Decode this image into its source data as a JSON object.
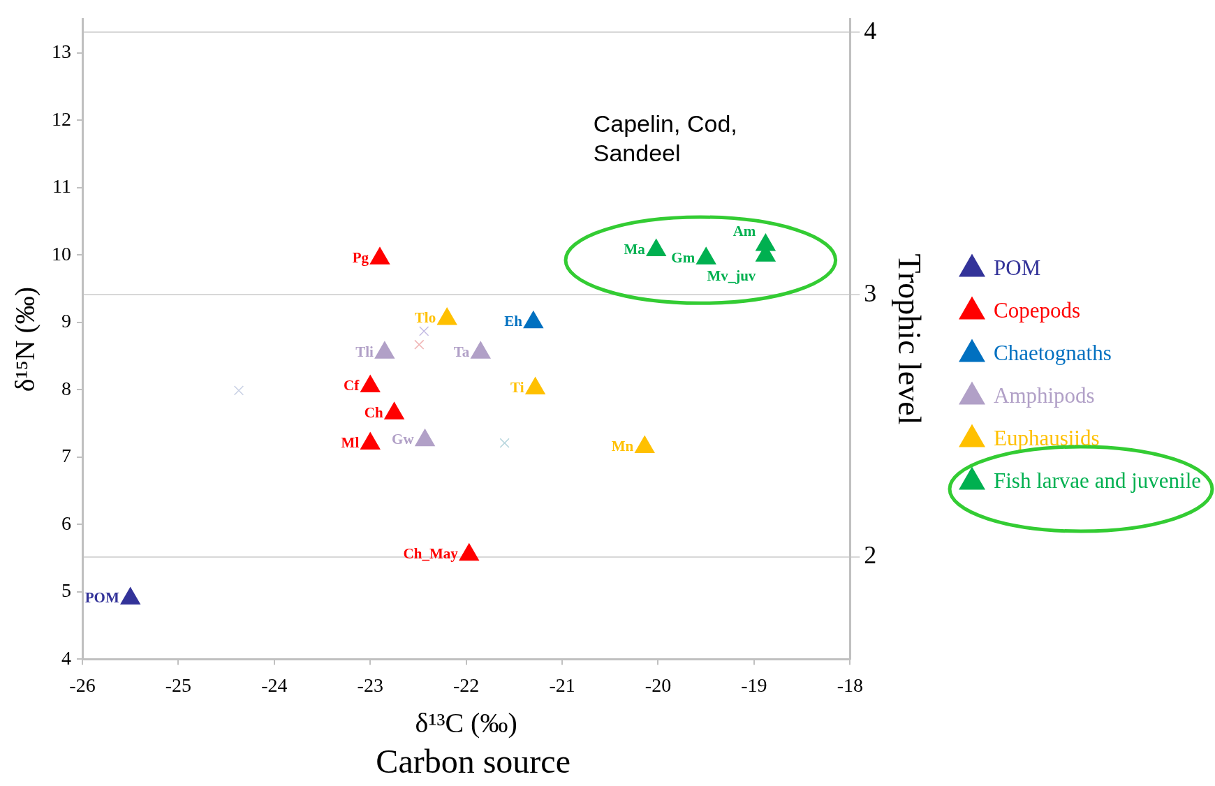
{
  "chart_data": {
    "type": "scatter",
    "xlabel": "δ¹³C (‰)",
    "ylabel": "δ¹⁵N (‰)",
    "y2label": "Trophic level",
    "xlim": [
      -26,
      -18
    ],
    "xticks": [
      -26,
      -25,
      -24,
      -23,
      -22,
      -21,
      -20,
      -19,
      -18
    ],
    "ylim": [
      4,
      13.5
    ],
    "yticks": [
      4,
      5,
      6,
      7,
      8,
      9,
      10,
      11,
      12,
      13
    ],
    "y2lim": [
      1.61,
      4.05
    ],
    "y2ticks": [
      2,
      3,
      4
    ],
    "grid": "y2",
    "legend": "right",
    "marker": "triangle",
    "annotations": [
      "Capelin, Cod, Sandeel",
      "Carbon source"
    ],
    "series": [
      {
        "name": "POM",
        "color": "#333399",
        "x": [
          -25.5
        ],
        "values": [
          4.9
        ],
        "value_labels": [
          "POM"
        ]
      },
      {
        "name": "Copepods",
        "color": "#ff0000",
        "x": [
          -22.9,
          -23.0,
          -22.75,
          -23.0,
          -21.97
        ],
        "values": [
          9.95,
          8.05,
          7.65,
          7.2,
          5.55
        ],
        "value_labels": [
          "Pg",
          "Cf",
          "Ch",
          "Ml",
          "Ch_May"
        ]
      },
      {
        "name": "Chaetognaths",
        "color": "#0070c0",
        "x": [
          -21.3
        ],
        "values": [
          9.0
        ],
        "value_labels": [
          "Eh"
        ]
      },
      {
        "name": "Amphipods",
        "color": "#b1a0c7",
        "x": [
          -22.85,
          -21.85,
          -22.43
        ],
        "values": [
          8.55,
          8.55,
          7.25
        ],
        "value_labels": [
          "Tli",
          "Ta",
          "Gw"
        ]
      },
      {
        "name": "Euphausiids",
        "color": "#ffc000",
        "x": [
          -22.2,
          -21.28,
          -20.14
        ],
        "values": [
          9.05,
          8.02,
          7.15
        ],
        "value_labels": [
          "Tlo",
          "Ti",
          "Mn"
        ]
      },
      {
        "name": "Fish larvae and juvenile",
        "color": "#00b050",
        "x": [
          -20.02,
          -19.5,
          -18.88,
          -18.88
        ],
        "values": [
          10.07,
          9.95,
          10.15,
          9.99
        ],
        "value_labels": [
          "Ma",
          "Gm",
          "Am",
          "Mv_juv"
        ]
      },
      {
        "color": "#c8d0e4",
        "marker": "cross",
        "x": [
          -24.37
        ],
        "values": [
          7.99
        ]
      },
      {
        "color": "#c4bce4",
        "marker": "cross",
        "x": [
          -22.44
        ],
        "values": [
          8.87
        ]
      },
      {
        "color": "#f0b4b4",
        "marker": "cross",
        "x": [
          -22.49
        ],
        "values": [
          8.67
        ]
      },
      {
        "color": "#b4d4dc",
        "marker": "cross",
        "x": [
          -21.6
        ],
        "values": [
          7.21
        ]
      }
    ]
  }
}
